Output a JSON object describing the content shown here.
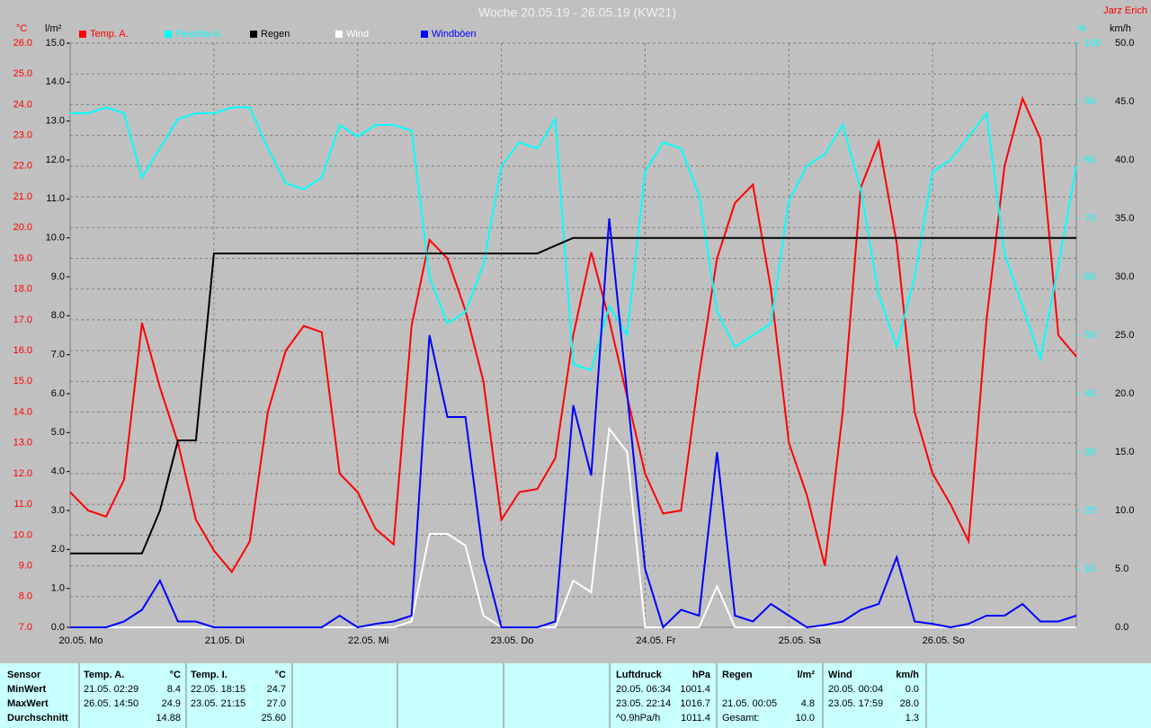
{
  "chart_data": {
    "type": "line",
    "title": "Woche 20.05.19 - 26.05.19 (KW21)",
    "author": "Jarz Erich",
    "y_label": "°C",
    "y3_label": "l/m²",
    "y2_label": "%",
    "y4_label": "km/h",
    "xlim": [
      0,
      168
    ],
    "xticks": [
      {
        "value": 0,
        "label": "20.05. Mo"
      },
      {
        "value": 24,
        "label": "21.05. Di"
      },
      {
        "value": 48,
        "label": "22.05. Mi"
      },
      {
        "value": 72,
        "label": "23.05. Do"
      },
      {
        "value": 96,
        "label": "24.05. Fr"
      },
      {
        "value": 120,
        "label": "25.05. Sa"
      },
      {
        "value": 144,
        "label": "26.05. So"
      }
    ],
    "ylim": [
      7,
      26
    ],
    "yticks": [
      {
        "value": 7,
        "label": "7.0"
      },
      {
        "value": 8,
        "label": "8.0"
      },
      {
        "value": 9,
        "label": "9.0"
      },
      {
        "value": 10,
        "label": "10.0"
      },
      {
        "value": 11,
        "label": "11.0"
      },
      {
        "value": 12,
        "label": "12.0"
      },
      {
        "value": 13,
        "label": "13.0"
      },
      {
        "value": 14,
        "label": "14.0"
      },
      {
        "value": 15,
        "label": "15.0"
      },
      {
        "value": 16,
        "label": "16.0"
      },
      {
        "value": 17,
        "label": "17.0"
      },
      {
        "value": 18,
        "label": "18.0"
      },
      {
        "value": 19,
        "label": "19.0"
      },
      {
        "value": 20,
        "label": "20.0"
      },
      {
        "value": 21,
        "label": "21.0"
      },
      {
        "value": 22,
        "label": "22.0"
      },
      {
        "value": 23,
        "label": "23.0"
      },
      {
        "value": 24,
        "label": "24.0"
      },
      {
        "value": 25,
        "label": "25.0"
      },
      {
        "value": 26,
        "label": "26.0"
      }
    ],
    "y3lim": [
      0,
      15
    ],
    "y3ticks": [
      {
        "value": 0,
        "label": "0.0"
      },
      {
        "value": 1,
        "label": "1.0"
      },
      {
        "value": 2,
        "label": "2.0"
      },
      {
        "value": 3,
        "label": "3.0"
      },
      {
        "value": 4,
        "label": "4.0"
      },
      {
        "value": 5,
        "label": "5.0"
      },
      {
        "value": 6,
        "label": "6.0"
      },
      {
        "value": 7,
        "label": "7.0"
      },
      {
        "value": 8,
        "label": "8.0"
      },
      {
        "value": 9,
        "label": "9.0"
      },
      {
        "value": 10,
        "label": "10.0"
      },
      {
        "value": 11,
        "label": "11.0"
      },
      {
        "value": 12,
        "label": "12.0"
      },
      {
        "value": 13,
        "label": "13.0"
      },
      {
        "value": 14,
        "label": "14.0"
      },
      {
        "value": 15,
        "label": "15.0"
      }
    ],
    "y2lim": [
      0,
      100
    ],
    "y2ticks": [
      10,
      20,
      30,
      40,
      50,
      60,
      70,
      80,
      90,
      100
    ],
    "y4lim": [
      0,
      50
    ],
    "y4ticks": [
      {
        "value": 0,
        "label": "0.0"
      },
      {
        "value": 5,
        "label": "5.0"
      },
      {
        "value": 10,
        "label": "10.0"
      },
      {
        "value": 15,
        "label": "15.0"
      },
      {
        "value": 20,
        "label": "20.0"
      },
      {
        "value": 25,
        "label": "25.0"
      },
      {
        "value": 30,
        "label": "30.0"
      },
      {
        "value": 35,
        "label": "35.0"
      },
      {
        "value": 40,
        "label": "40.0"
      },
      {
        "value": 45,
        "label": "45.0"
      },
      {
        "value": 50,
        "label": "50.0"
      }
    ],
    "grid": true,
    "x": [
      0,
      3,
      6,
      9,
      12,
      15,
      18,
      21,
      24,
      27,
      30,
      33,
      36,
      39,
      42,
      45,
      48,
      51,
      54,
      57,
      60,
      63,
      66,
      69,
      72,
      75,
      78,
      81,
      84,
      87,
      90,
      93,
      96,
      99,
      102,
      105,
      108,
      111,
      114,
      117,
      120,
      123,
      126,
      129,
      132,
      135,
      138,
      141,
      144,
      147,
      150,
      153,
      156,
      159,
      162,
      165,
      168
    ],
    "series": [
      {
        "name": "Temp. A.",
        "color": "#ff0000",
        "axis": "y",
        "values": [
          11.4,
          10.8,
          10.6,
          11.8,
          16.9,
          14.8,
          13.0,
          10.5,
          9.5,
          8.8,
          9.8,
          14.0,
          16.0,
          16.8,
          16.6,
          12.0,
          11.4,
          10.2,
          9.7,
          16.8,
          19.6,
          19.0,
          17.3,
          15.0,
          10.5,
          11.4,
          11.5,
          12.5,
          16.5,
          19.2,
          17.0,
          14.5,
          12.0,
          10.7,
          10.8,
          15.2,
          19.0,
          20.8,
          21.4,
          18.0,
          13.0,
          11.3,
          9.0,
          14.0,
          21.3,
          22.8,
          19.5,
          14.0,
          12.0,
          11.0,
          9.8,
          17.0,
          22.0,
          24.2,
          22.9,
          16.5,
          15.8
        ]
      },
      {
        "name": "Feuchte A.",
        "color": "#00ffff",
        "axis": "y2",
        "values": [
          88,
          88,
          89,
          88,
          77,
          82,
          87,
          88,
          88,
          89,
          89,
          82,
          76,
          75,
          77,
          86,
          84,
          86,
          86,
          85,
          60,
          52,
          54,
          62,
          79,
          83,
          82,
          87,
          45,
          44,
          55,
          50,
          78,
          83,
          82,
          74,
          54,
          48,
          50,
          52,
          73,
          79,
          81,
          86,
          75,
          57,
          48,
          60,
          78,
          80,
          84,
          88,
          64,
          55,
          46,
          62,
          79
        ]
      },
      {
        "name": "Regen",
        "color": "#000000",
        "axis": "y3",
        "values": [
          1.9,
          1.9,
          1.9,
          1.9,
          1.9,
          3.0,
          4.8,
          4.8,
          9.6,
          9.6,
          9.6,
          9.6,
          9.6,
          9.6,
          9.6,
          9.6,
          9.6,
          9.6,
          9.6,
          9.6,
          9.6,
          9.6,
          9.6,
          9.6,
          9.6,
          9.6,
          9.6,
          9.8,
          10.0,
          10.0,
          10.0,
          10.0,
          10.0,
          10.0,
          10.0,
          10.0,
          10.0,
          10.0,
          10.0,
          10.0,
          10.0,
          10.0,
          10.0,
          10.0,
          10.0,
          10.0,
          10.0,
          10.0,
          10.0,
          10.0,
          10.0,
          10.0,
          10.0,
          10.0,
          10.0,
          10.0,
          10.0
        ]
      },
      {
        "name": "Wind",
        "color": "#ffffff",
        "axis": "y4",
        "values": [
          0,
          0,
          0,
          0,
          0,
          0,
          0,
          0,
          0,
          0,
          0,
          0,
          0,
          0,
          0,
          0,
          0,
          0,
          0,
          0.5,
          8,
          8,
          7,
          1,
          0,
          0,
          0,
          0,
          4,
          3,
          17,
          15,
          0,
          0,
          0,
          0,
          3.5,
          0,
          0,
          0,
          0,
          0,
          0,
          0,
          0,
          0,
          0,
          0,
          0,
          0,
          0,
          0,
          0,
          0,
          0,
          0,
          0
        ]
      },
      {
        "name": "Windböen",
        "color": "#0000ff",
        "axis": "y4",
        "values": [
          0,
          0,
          0,
          0.5,
          1.5,
          4,
          0.5,
          0.5,
          0,
          0,
          0,
          0,
          0,
          0,
          0,
          1,
          0,
          0.3,
          0.5,
          1,
          25,
          18,
          18,
          6,
          0,
          0,
          0,
          0.5,
          19,
          13,
          35,
          20,
          5,
          0,
          1.5,
          1,
          15,
          1,
          0.5,
          2,
          1,
          0,
          0.2,
          0.5,
          1.5,
          2,
          6,
          0.5,
          0.3,
          0,
          0.3,
          1,
          1,
          2,
          0.5,
          0.5,
          1
        ]
      }
    ]
  },
  "table": {
    "row_labels": [
      "Sensor",
      "MinWert",
      "MaxWert",
      "Durchschnitt"
    ],
    "blocks": [
      {
        "name": "Temp. A.",
        "unit": "°C",
        "rows": [
          {
            "row": 0,
            "time": "21.05. 02:29",
            "value": "8.4"
          },
          {
            "row": 1,
            "time": "26.05. 14:50",
            "value": "24.9"
          },
          {
            "row": 2,
            "value": "14.88"
          }
        ]
      },
      {
        "name": "Temp. I.",
        "unit": "°C",
        "rows": [
          {
            "row": 0,
            "time": "22.05. 18:15",
            "value": "24.7"
          },
          {
            "row": 1,
            "time": "23.05. 21:15",
            "value": "27.0"
          },
          {
            "row": 2,
            "value": "25.60"
          }
        ]
      },
      {
        "name": "Luftdruck",
        "unit": "hPa",
        "rows": [
          {
            "row": 0,
            "time": "20.05. 06:34",
            "value": "1001.4"
          },
          {
            "row": 1,
            "time": "23.05. 22:14",
            "value": "1016.7"
          },
          {
            "row": 2,
            "time": "^0.9hPa/h",
            "value": "1011.4"
          }
        ]
      },
      {
        "name": "Regen",
        "unit": "l/m²",
        "rows": [
          {
            "row": 1,
            "time": "21.05. 00:05",
            "value": "4.8"
          },
          {
            "row": 2,
            "time": "Gesamt:",
            "value": "10.0"
          }
        ]
      },
      {
        "name": "Wind",
        "unit": "km/h",
        "rows": [
          {
            "row": 0,
            "time": "20.05. 00:04",
            "value": "0.0"
          },
          {
            "row": 1,
            "time": "23.05. 17:59",
            "value": "28.0"
          },
          {
            "row": 2,
            "value": "1.3"
          }
        ]
      }
    ]
  }
}
